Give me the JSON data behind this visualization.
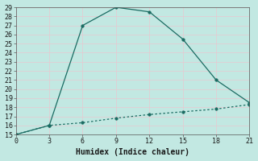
{
  "title": "",
  "xlabel": "Humidex (Indice chaleur)",
  "bg_color": "#c2e8e2",
  "grid_color": "#e8c8d0",
  "line_color": "#1a6b62",
  "xlim": [
    0,
    21
  ],
  "ylim": [
    15,
    29
  ],
  "xticks": [
    0,
    3,
    6,
    9,
    12,
    15,
    18,
    21
  ],
  "yticks": [
    15,
    16,
    17,
    18,
    19,
    20,
    21,
    22,
    23,
    24,
    25,
    26,
    27,
    28,
    29
  ],
  "line1_x": [
    0,
    3,
    6,
    9,
    12,
    15,
    18,
    21
  ],
  "line1_y": [
    15,
    16,
    27,
    29,
    28.5,
    25.5,
    21,
    18.5
  ],
  "line2_x": [
    0,
    3,
    6,
    9,
    12,
    15,
    18,
    21
  ],
  "line2_y": [
    15,
    16,
    16.3,
    16.8,
    17.2,
    17.5,
    17.8,
    18.3
  ],
  "markersize": 2.5,
  "linewidth": 0.9,
  "tick_fontsize": 6,
  "xlabel_fontsize": 7
}
